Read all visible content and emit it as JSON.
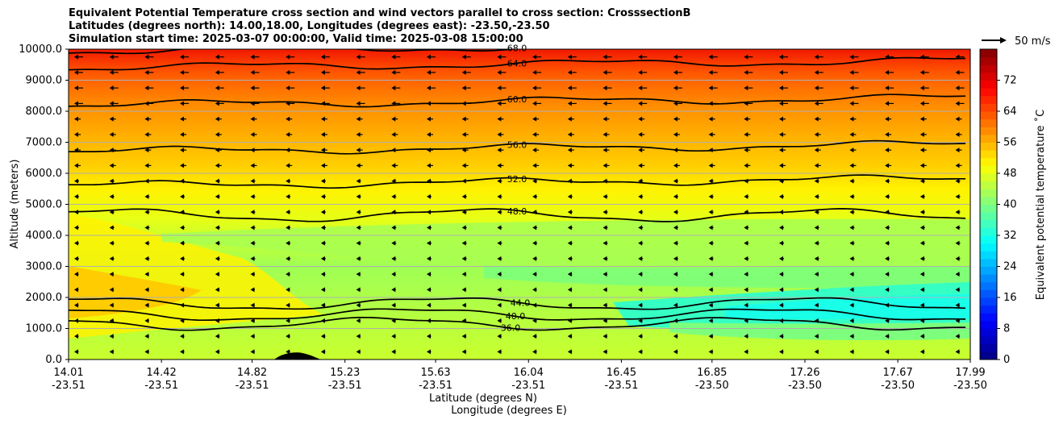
{
  "title": {
    "line1": "Equivalent Potential Temperature cross section and wind vectors parallel to cross section: CrosssectionB",
    "line2": "Latitudes (degrees north): 14.00,18.00, Longitudes (degrees east): -23.50,-23.50",
    "line3": "Simulation start time: 2025-03-07 00:00:00, Valid time: 2025-03-08 15:00:00"
  },
  "chart_data": {
    "type": "heatmap",
    "subtype": "filled contour cross section with line contours and wind vectors",
    "ylabel": "Altitude (meters)",
    "xlabel_lat": "Latitude (degrees N)",
    "xlabel_lon": "Longitude (degrees E)",
    "ylim": [
      0,
      10000
    ],
    "yticks": [
      "0.0",
      "1000.0",
      "2000.0",
      "3000.0",
      "4000.0",
      "5000.0",
      "6000.0",
      "7000.0",
      "8000.0",
      "9000.0",
      "10000.0"
    ],
    "ytick_values": [
      0,
      1000,
      2000,
      3000,
      4000,
      5000,
      6000,
      7000,
      8000,
      9000,
      10000
    ],
    "xlim": [
      14.01,
      17.99
    ],
    "xticks_lat": [
      "14.01",
      "14.42",
      "14.82",
      "15.23",
      "15.63",
      "16.04",
      "16.45",
      "16.85",
      "17.26",
      "17.67",
      "17.99"
    ],
    "xticks_lon": [
      "-23.51",
      "-23.51",
      "-23.51",
      "-23.51",
      "-23.51",
      "-23.51",
      "-23.51",
      "-23.50",
      "-23.50",
      "-23.50",
      "-23.50"
    ],
    "xtick_values": [
      14.01,
      14.42,
      14.82,
      15.23,
      15.63,
      16.04,
      16.45,
      16.85,
      17.26,
      17.67,
      17.99
    ],
    "grid": "horizontal",
    "colorbar": {
      "label": "Equivalent potential temperature ˚C",
      "range": [
        0,
        80
      ],
      "ticks": [
        "0",
        "8",
        "16",
        "24",
        "32",
        "40",
        "48",
        "56",
        "64",
        "72"
      ],
      "tick_values": [
        0,
        8,
        16,
        24,
        32,
        40,
        48,
        56,
        64,
        72
      ]
    },
    "wind_key": {
      "label": "50 m/s",
      "speed": 50
    },
    "contour_levels": [
      {
        "value": 68,
        "label": "68.0",
        "altitude": 9950
      },
      {
        "value": 64,
        "label": "64.0",
        "altitude": 9400
      },
      {
        "value": 60,
        "label": "60.0",
        "altitude": 8200
      },
      {
        "value": 56,
        "label": "56.0",
        "altitude": 6700
      },
      {
        "value": 52,
        "label": "52.0",
        "altitude": 5600
      },
      {
        "value": 48,
        "label": "48.0",
        "altitude": 4650
      },
      {
        "value": 44,
        "label": "44.0",
        "altitude": 1800
      },
      {
        "value": 40,
        "label": "40.0",
        "altitude": 1450
      },
      {
        "value": 36,
        "label": "36.0",
        "altitude": 1150
      }
    ]
  }
}
